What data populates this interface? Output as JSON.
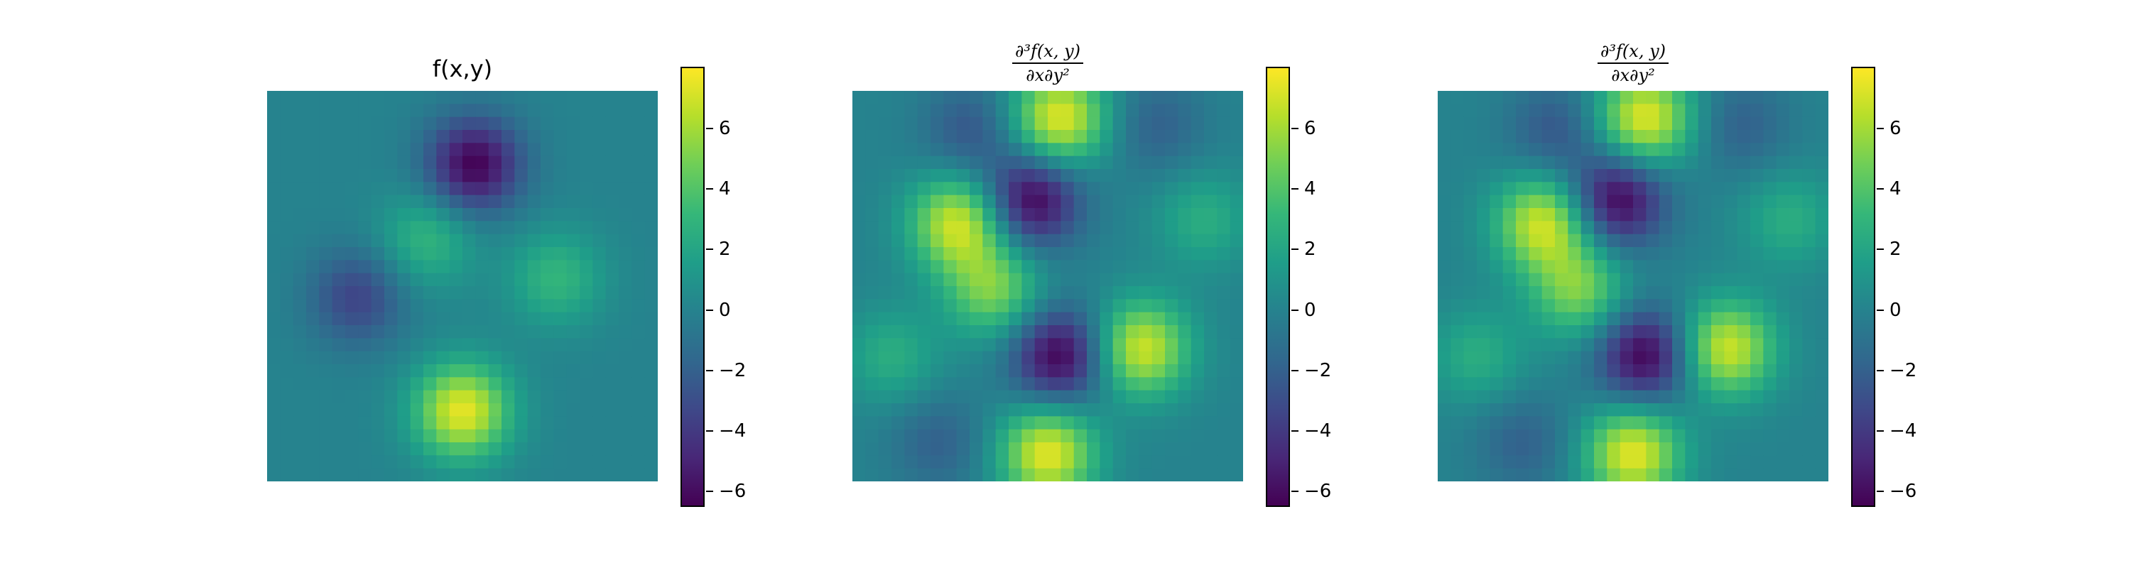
{
  "colormap": "viridis",
  "colors": [
    "#440154",
    "#482878",
    "#3e4989",
    "#31688e",
    "#26828e",
    "#1f9e89",
    "#35b779",
    "#6ece58",
    "#b5de2b",
    "#fde725"
  ],
  "vmin": -6.5,
  "vmax": 8.0,
  "colorbar_ticks": [
    "6",
    "4",
    "2",
    "0",
    "−2",
    "−4",
    "−6"
  ],
  "panels": [
    {
      "title": "f(x,y)",
      "title_kind": "plain"
    },
    {
      "title_num": "∂³f(x, y)",
      "title_den": "∂x∂y²",
      "title_kind": "math"
    },
    {
      "title_num": "∂³f(x, y)",
      "title_den": "∂x∂y²",
      "title_kind": "math"
    }
  ],
  "chart_data": [
    {
      "type": "heatmap",
      "title": "f(x,y)",
      "grid": [
        30,
        30
      ],
      "colorbar": {
        "range": [
          -6.5,
          8.0
        ],
        "ticks": [
          6,
          4,
          2,
          0,
          -2,
          -4,
          -6
        ]
      },
      "features": [
        {
          "x": 0.53,
          "y": 0.19,
          "value": -6.5
        },
        {
          "x": 0.5,
          "y": 0.82,
          "value": 7.5
        },
        {
          "x": 0.23,
          "y": 0.53,
          "value": -3.5
        },
        {
          "x": 0.41,
          "y": 0.38,
          "value": 3.0
        },
        {
          "x": 0.74,
          "y": 0.48,
          "value": 3.0
        }
      ]
    },
    {
      "type": "heatmap",
      "title": "∂³f(x, y)/∂x∂y²",
      "grid": [
        30,
        30
      ],
      "colorbar": {
        "range": [
          -6.5,
          8.0
        ],
        "ticks": [
          6,
          4,
          2,
          0,
          -2,
          -4,
          -6
        ]
      },
      "features": [
        {
          "x": 0.53,
          "y": 0.07,
          "value": 7.5
        },
        {
          "x": 0.46,
          "y": 0.28,
          "value": -6.5
        },
        {
          "x": 0.27,
          "y": 0.34,
          "value": 7.0
        },
        {
          "x": 0.36,
          "y": 0.51,
          "value": 5.0
        },
        {
          "x": 0.53,
          "y": 0.68,
          "value": -6.5
        },
        {
          "x": 0.74,
          "y": 0.66,
          "value": 7.0
        },
        {
          "x": 0.5,
          "y": 0.93,
          "value": 7.5
        },
        {
          "x": 0.1,
          "y": 0.68,
          "value": 2.5
        },
        {
          "x": 0.9,
          "y": 0.33,
          "value": 2.5
        },
        {
          "x": 0.22,
          "y": 0.9,
          "value": -2.0
        },
        {
          "x": 0.78,
          "y": 0.09,
          "value": -2.0
        },
        {
          "x": 0.3,
          "y": 0.1,
          "value": -2.5
        }
      ]
    },
    {
      "type": "heatmap",
      "title": "∂³f(x, y)/∂x∂y²",
      "grid": [
        30,
        30
      ],
      "colorbar": {
        "range": [
          -6.5,
          8.0
        ],
        "ticks": [
          6,
          4,
          2,
          0,
          -2,
          -4,
          -6
        ]
      },
      "features": [
        {
          "x": 0.53,
          "y": 0.07,
          "value": 7.5
        },
        {
          "x": 0.46,
          "y": 0.28,
          "value": -6.5
        },
        {
          "x": 0.27,
          "y": 0.34,
          "value": 7.0
        },
        {
          "x": 0.36,
          "y": 0.51,
          "value": 5.0
        },
        {
          "x": 0.53,
          "y": 0.68,
          "value": -6.5
        },
        {
          "x": 0.74,
          "y": 0.66,
          "value": 7.0
        },
        {
          "x": 0.5,
          "y": 0.93,
          "value": 7.5
        },
        {
          "x": 0.1,
          "y": 0.68,
          "value": 2.5
        },
        {
          "x": 0.9,
          "y": 0.33,
          "value": 2.5
        },
        {
          "x": 0.22,
          "y": 0.9,
          "value": -2.0
        },
        {
          "x": 0.78,
          "y": 0.09,
          "value": -2.0
        },
        {
          "x": 0.3,
          "y": 0.1,
          "value": -2.5
        }
      ]
    }
  ]
}
